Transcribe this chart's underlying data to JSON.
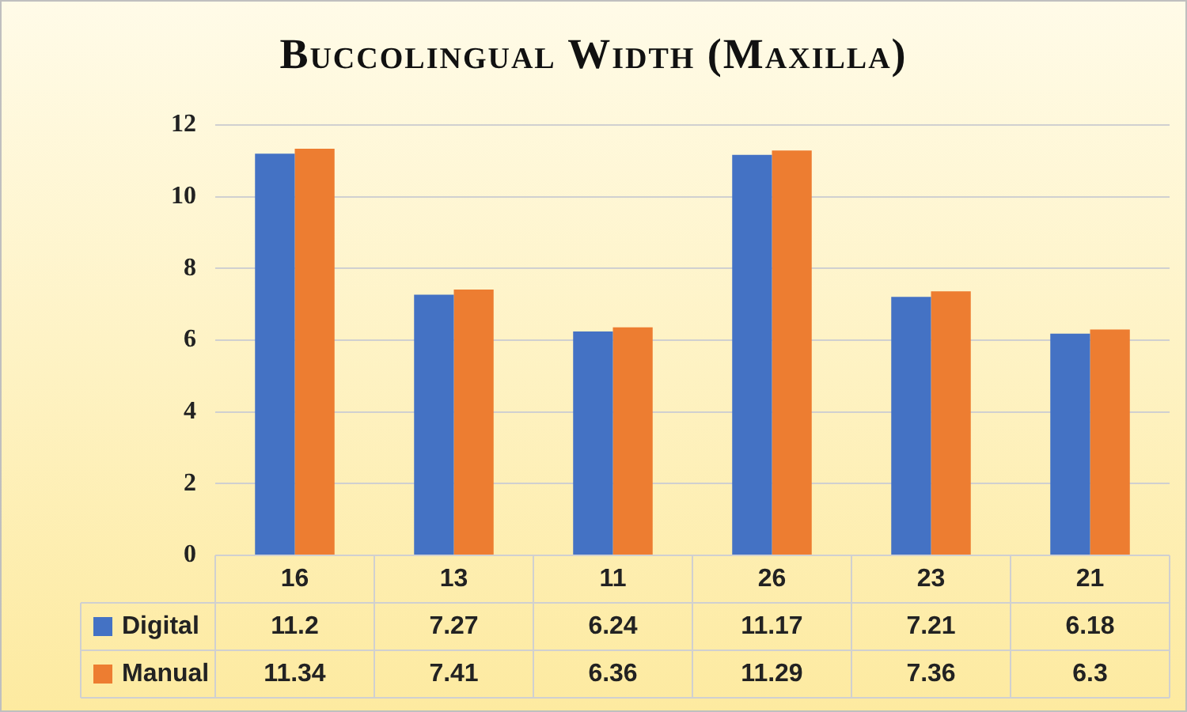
{
  "chart_data": {
    "type": "bar",
    "title": "Buccolingual Width (Maxilla)",
    "categories": [
      "16",
      "13",
      "11",
      "26",
      "23",
      "21"
    ],
    "series": [
      {
        "name": "Digital",
        "color": "#4472c4",
        "values": [
          11.2,
          7.27,
          6.24,
          11.17,
          7.21,
          6.18
        ]
      },
      {
        "name": "Manual",
        "color": "#ed7d31",
        "values": [
          11.34,
          7.41,
          6.36,
          11.29,
          7.36,
          6.3
        ]
      }
    ],
    "ylim": [
      0,
      12
    ],
    "yticks": [
      0,
      2,
      4,
      6,
      8,
      10,
      12
    ],
    "grid": "y",
    "legend": "bottom",
    "data_labels": true
  }
}
